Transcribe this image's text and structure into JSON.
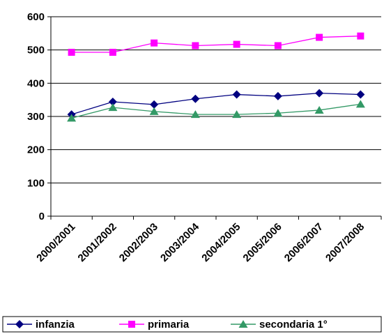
{
  "chart_data": {
    "type": "line",
    "title": "",
    "xlabel": "",
    "ylabel": "",
    "categories": [
      "2000/2001",
      "2001/2002",
      "2002/2003",
      "2003/2004",
      "2004/2005",
      "2005/2006",
      "2006/2007",
      "2007/2008"
    ],
    "ylim": [
      0,
      600
    ],
    "yticks": [
      0,
      100,
      200,
      300,
      400,
      500,
      600
    ],
    "grid": "horizontal",
    "legend": "bottom",
    "series": [
      {
        "name": "infanzia",
        "color": "#000080",
        "marker": "diamond",
        "values": [
          306,
          344,
          336,
          353,
          366,
          361,
          370,
          366
        ]
      },
      {
        "name": "primaria",
        "color": "#FF00FF",
        "marker": "square",
        "values": [
          493,
          493,
          521,
          513,
          517,
          513,
          538,
          542
        ]
      },
      {
        "name": "secondaria 1°",
        "color": "#339966",
        "marker": "triangle",
        "values": [
          295,
          327,
          315,
          306,
          306,
          310,
          319,
          337
        ]
      }
    ]
  }
}
